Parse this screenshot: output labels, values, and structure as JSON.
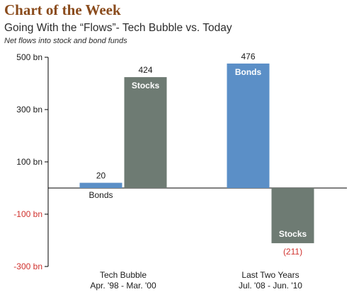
{
  "header": {
    "title": "Chart of the Week",
    "subtitle": "Going With the “Flows”- Tech Bubble vs. Today",
    "note": "Net flows into stock and bond funds"
  },
  "chart_data": {
    "type": "bar",
    "title": "Going With the “Flows”- Tech Bubble vs. Today",
    "subtitle": "Net flows into stock and bond funds",
    "ylim": [
      -300,
      500
    ],
    "yticks": [
      {
        "value": 500,
        "label": "500 bn"
      },
      {
        "value": 300,
        "label": "300 bn"
      },
      {
        "value": 100,
        "label": "100 bn"
      },
      {
        "value": -100,
        "label": "-100 bn"
      },
      {
        "value": -300,
        "label": "-300 bn"
      }
    ],
    "categories": [
      {
        "lines": [
          "Tech Bubble",
          "Apr. '98 - Mar. '00"
        ]
      },
      {
        "lines": [
          "Last Two Years",
          "Jul. '08 - Jun. '10"
        ]
      }
    ],
    "bars": [
      {
        "category": 0,
        "name": "Bonds",
        "value": 20,
        "value_label": "20",
        "color": "#5b8fc7"
      },
      {
        "category": 0,
        "name": "Stocks",
        "value": 424,
        "value_label": "424",
        "color": "#6e7b73"
      },
      {
        "category": 1,
        "name": "Bonds",
        "value": 476,
        "value_label": "476",
        "color": "#5b8fc7"
      },
      {
        "category": 1,
        "name": "Stocks",
        "value": -211,
        "value_label": "(211)",
        "color": "#6e7b73",
        "value_label_color": "#d0312d"
      }
    ],
    "negative_tick_color": "#d0312d",
    "grid": false,
    "legend": "none"
  }
}
